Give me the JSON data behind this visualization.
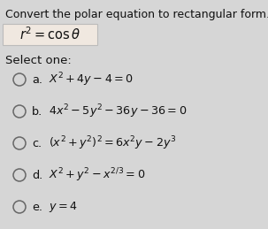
{
  "title": "Convert the polar equation to rectangular form.",
  "equation": "$r^2 = \\cos\\theta$",
  "select_one": "Select one:",
  "options": [
    {
      "label": "a.",
      "text": "$X^2 + 4y - 4 = 0$"
    },
    {
      "label": "b.",
      "text": "$4x^2 - 5y^2 - 36y - 36 = 0$"
    },
    {
      "label": "c.",
      "text": "$(x^2 + y^2)^2 = 6x^2y - 2y^3$"
    },
    {
      "label": "d.",
      "text": "$X^2 + y^2 - x^{2/3} = 0$"
    },
    {
      "label": "e.",
      "text": "$y = 4$"
    }
  ],
  "bg_color": "#d6d6d6",
  "box_facecolor": "#f0e8e0",
  "box_edgecolor": "#bbbbbb",
  "text_color": "#111111",
  "circle_facecolor": "#d6d6d6",
  "circle_edgecolor": "#666666",
  "title_fontsize": 9.0,
  "eq_fontsize": 10.5,
  "option_fontsize": 9.2,
  "select_fontsize": 9.5,
  "label_fontsize": 9.2,
  "figw": 3.03,
  "figh": 2.59,
  "dpi": 100
}
